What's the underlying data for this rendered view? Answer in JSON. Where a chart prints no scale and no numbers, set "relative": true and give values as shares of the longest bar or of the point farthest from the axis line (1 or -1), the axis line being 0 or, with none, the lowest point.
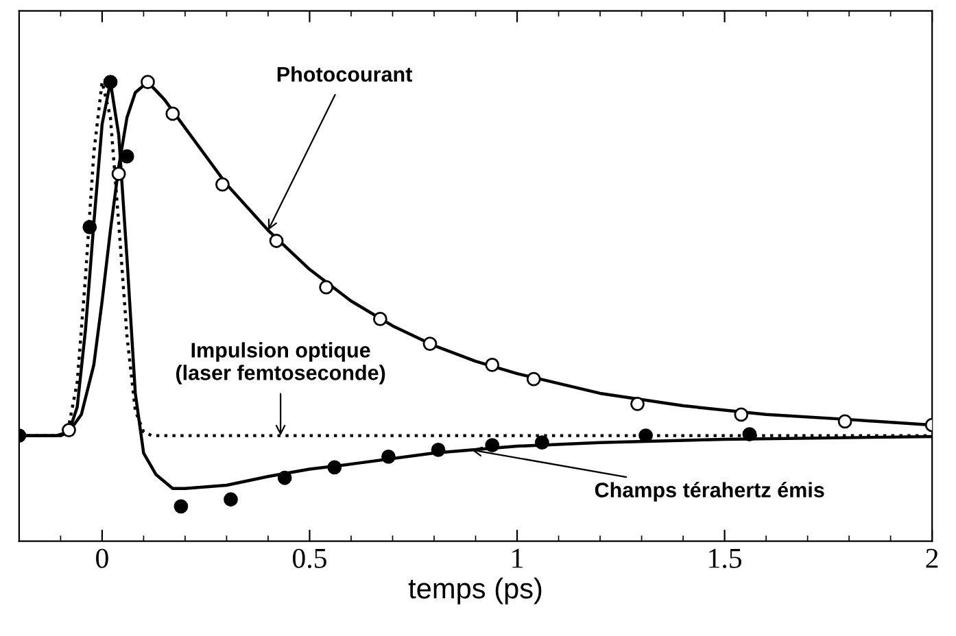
{
  "chart_data": {
    "type": "line",
    "relative": true,
    "xlabel": "temps (ps)",
    "xlim": [
      -0.2,
      2
    ],
    "xticks": [
      0,
      0.5,
      1,
      1.5,
      2
    ],
    "tick_labels": "x",
    "grid": false,
    "series": [
      {
        "line_style": "dotted",
        "marker": "none",
        "color": "#000000",
        "x": [
          -0.2,
          -0.1,
          -0.08,
          -0.06,
          -0.04,
          -0.02,
          0.0,
          0.02,
          0.04,
          0.06,
          0.08,
          0.1,
          0.12,
          2.0
        ],
        "values": [
          0.23,
          0.23,
          0.253,
          0.346,
          0.577,
          0.846,
          1.0,
          0.923,
          0.692,
          0.446,
          0.284,
          0.238,
          0.23,
          0.23
        ]
      },
      {
        "line_style": "solid",
        "marker": "none",
        "color": "#000000",
        "x": [
          -0.2,
          -0.1,
          -0.08,
          -0.05,
          -0.02,
          0.0,
          0.02,
          0.04,
          0.06,
          0.08,
          0.11,
          0.15,
          0.2,
          0.3,
          0.4,
          0.5,
          0.6,
          0.7,
          0.8,
          0.9,
          1.0,
          1.2,
          1.4,
          1.6,
          1.8,
          2.0
        ],
        "values": [
          0.23,
          0.23,
          0.238,
          0.276,
          0.384,
          0.523,
          0.677,
          0.815,
          0.923,
          0.977,
          1.0,
          0.962,
          0.9,
          0.777,
          0.677,
          0.592,
          0.523,
          0.469,
          0.426,
          0.392,
          0.365,
          0.322,
          0.295,
          0.276,
          0.265,
          0.253
        ]
      },
      {
        "line_style": "solid",
        "marker": "none",
        "color": "#000000",
        "x": [
          -0.2,
          -0.11,
          -0.08,
          -0.06,
          -0.04,
          -0.02,
          0.0,
          0.02,
          0.04,
          0.06,
          0.08,
          0.1,
          0.13,
          0.17,
          0.2,
          0.3,
          0.4,
          0.5,
          0.6,
          0.8,
          1.0,
          1.2,
          1.5,
          2.0
        ],
        "values": [
          0.23,
          0.23,
          0.238,
          0.292,
          0.461,
          0.692,
          0.908,
          1.0,
          0.885,
          0.615,
          0.322,
          0.192,
          0.145,
          0.115,
          0.115,
          0.122,
          0.141,
          0.157,
          0.168,
          0.192,
          0.207,
          0.215,
          0.222,
          0.228
        ]
      },
      {
        "type": "scatter",
        "marker": "circle",
        "color": "#ffffff",
        "x": [
          -0.08,
          0.04,
          0.11,
          0.17,
          0.29,
          0.42,
          0.54,
          0.67,
          0.79,
          0.94,
          1.04,
          1.29,
          1.54,
          1.79,
          2.0
        ],
        "values": [
          0.242,
          0.8,
          1.0,
          0.931,
          0.777,
          0.654,
          0.553,
          0.484,
          0.43,
          0.384,
          0.353,
          0.299,
          0.276,
          0.261,
          0.253
        ]
      },
      {
        "type": "scatter",
        "marker": "circle",
        "color": "#000000",
        "x": [
          -0.2,
          -0.03,
          0.02,
          0.06,
          0.19,
          0.31,
          0.44,
          0.56,
          0.69,
          0.81,
          0.94,
          1.06,
          1.31,
          1.56
        ],
        "values": [
          0.23,
          0.684,
          1.0,
          0.838,
          0.076,
          0.091,
          0.138,
          0.161,
          0.184,
          0.199,
          0.209,
          0.215,
          0.23,
          0.233
        ]
      }
    ],
    "annotations": [
      {
        "text": "Photocourant",
        "x": 0.4,
        "y": 0.677
      },
      {
        "text": "Impulsion optique\n(laser femtoseconde)",
        "x": 0.43,
        "y": 0.23
      },
      {
        "text": "Champs térahertz émis",
        "x": 0.89,
        "y": 0.199
      }
    ]
  }
}
